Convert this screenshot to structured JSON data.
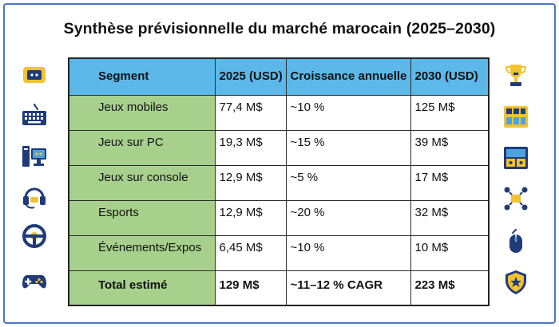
{
  "title": "Synthèse prévisionnelle du marché marocain (2025–2030)",
  "table": {
    "headers": [
      "Segment",
      "2025 (USD)",
      "Croissance annuelle",
      "2030 (USD)"
    ],
    "rows": [
      [
        "Jeux mobiles",
        "77,4 M$",
        "~10 %",
        "125 M$"
      ],
      [
        "Jeux sur PC",
        "19,3 M$",
        "~15 %",
        "39 M$"
      ],
      [
        "Jeux sur console",
        "12,9 M$",
        "~5 %",
        "17 M$"
      ],
      [
        "Esports",
        "12,9 M$",
        "~20 %",
        "32 M$"
      ],
      [
        "Événements/Expos",
        "6,45 M$",
        "~10 %",
        "10 M$"
      ]
    ],
    "total": [
      "Total estimé",
      "129 M$",
      "~11–12 % CAGR",
      "223 M$"
    ]
  },
  "icons": {
    "left": [
      "handheld-console-icon",
      "keyboard-icon",
      "desktop-pc-icon",
      "headset-icon",
      "steering-wheel-icon",
      "gamepad-icon"
    ],
    "right": [
      "trophy-icon",
      "arcade-buttons-icon",
      "arcade-cabinet-icon",
      "team-network-icon",
      "mouse-icon",
      "shield-star-icon"
    ]
  },
  "colors": {
    "header_bg": "#5bb8e9",
    "segment_bg": "#a8d08d",
    "frame_border": "#4a78c2",
    "icon_navy": "#1f3b78",
    "icon_yellow": "#f2c230",
    "icon_blue": "#4aa3e0"
  }
}
